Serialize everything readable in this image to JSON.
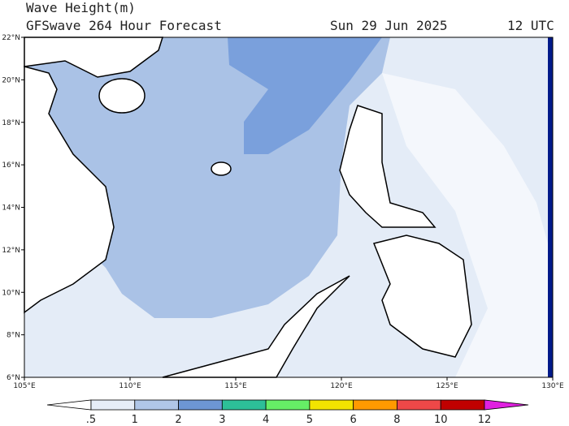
{
  "header": {
    "title": "Wave Height(m)",
    "subtitle": "GFSwave 264 Hour Forecast",
    "date": "Sun 29 Jun 2025",
    "time": "12 UTC"
  },
  "map": {
    "lat_labels": [
      "22°N",
      "20°N",
      "18°N",
      "16°N",
      "14°N",
      "12°N",
      "10°N",
      "8°N",
      "6°N"
    ],
    "lon_labels": [
      "105°E",
      "110°E",
      "115°E",
      "120°E",
      "125°E",
      "130°E"
    ]
  },
  "legend": {
    "labels": [
      ".5",
      "1",
      "2",
      "3",
      "4",
      "5",
      "6",
      "8",
      "10",
      "12"
    ],
    "colors": [
      "#ffffff",
      "#e6edf8",
      "#b0c6e8",
      "#6d96d4",
      "#2dbf98",
      "#66ee66",
      "#f2e400",
      "#ff9a00",
      "#ee4848",
      "#c00000",
      "#e020e0"
    ]
  }
}
